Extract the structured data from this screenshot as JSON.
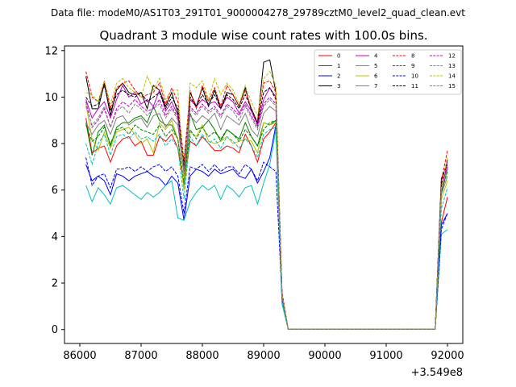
{
  "suptitle": "Data file: modeM0/AS1T03_291T01_9000004278_29789cztM0_level2_quad_clean.evt",
  "chart_data": {
    "type": "line",
    "title": "Quadrant 3 module wise count rates with 100.0s bins.",
    "xlabel": "",
    "ylabel": "",
    "xlim": [
      85750,
      92250
    ],
    "ylim": [
      -0.6,
      12.2
    ],
    "x_offset_label": "+3.549e8",
    "x_ticks": [
      86000,
      87000,
      88000,
      89000,
      90000,
      91000,
      92000
    ],
    "y_ticks": [
      0,
      2,
      4,
      6,
      8,
      10,
      12
    ],
    "grid": false,
    "legend_placement": "upper right, 4 columns",
    "x": [
      86100,
      86200,
      86300,
      86400,
      86500,
      86600,
      86700,
      86800,
      86900,
      87000,
      87100,
      87200,
      87300,
      87400,
      87500,
      87600,
      87700,
      87800,
      87900,
      88000,
      88100,
      88200,
      88300,
      88400,
      88500,
      88600,
      88700,
      88800,
      88900,
      89000,
      89100,
      89200,
      89300,
      89400,
      89500,
      89600,
      89700,
      89800,
      89900,
      90000,
      90100,
      90200,
      90300,
      90400,
      90500,
      90600,
      90700,
      90800,
      90900,
      91000,
      91100,
      91200,
      91300,
      91400,
      91500,
      91600,
      91700,
      91800,
      91900,
      92000
    ],
    "series": [
      {
        "name": "0",
        "color": "#ff0000",
        "dash": "solid",
        "values": [
          9.1,
          7.6,
          7.8,
          7.9,
          7.2,
          7.9,
          8.2,
          8.3,
          7.9,
          8.1,
          7.5,
          7.5,
          8.3,
          8.1,
          8.4,
          7.8,
          6.2,
          8.1,
          7.9,
          8.3,
          8.0,
          7.7,
          7.7,
          7.9,
          7.8,
          7.6,
          8.4,
          7.9,
          7.2,
          8.2,
          8.5,
          8.9,
          1.2,
          0.02,
          0.02,
          0.02,
          0.02,
          0.02,
          0.02,
          0.02,
          0.02,
          0.02,
          0.02,
          0.02,
          0.02,
          0.02,
          0.02,
          0.02,
          0.02,
          0.02,
          0.02,
          0.02,
          0.02,
          0.02,
          0.02,
          0.02,
          0.02,
          0.02,
          4.6,
          5.7
        ]
      },
      {
        "name": "1",
        "color": "#008000",
        "dash": "solid",
        "values": [
          8.9,
          7.5,
          8.5,
          8.8,
          7.9,
          8.7,
          8.9,
          8.9,
          9.1,
          9.2,
          8.9,
          9.6,
          9.0,
          8.8,
          8.8,
          8.2,
          6.1,
          9.3,
          8.6,
          8.7,
          9.0,
          8.6,
          8.1,
          8.6,
          8.4,
          8.2,
          8.9,
          8.3,
          7.9,
          8.9,
          8.8,
          9.0,
          1.3,
          0.02,
          0.02,
          0.02,
          0.02,
          0.02,
          0.02,
          0.02,
          0.02,
          0.02,
          0.02,
          0.02,
          0.02,
          0.02,
          0.02,
          0.02,
          0.02,
          0.02,
          0.02,
          0.02,
          0.02,
          0.02,
          0.02,
          0.02,
          0.02,
          0.02,
          5.9,
          6.9
        ]
      },
      {
        "name": "2",
        "color": "#0000ff",
        "dash": "solid",
        "values": [
          7.1,
          6.4,
          6.6,
          6.4,
          5.8,
          6.7,
          6.6,
          6.4,
          6.6,
          6.7,
          6.8,
          6.6,
          6.5,
          6.2,
          6.6,
          6.3,
          4.7,
          6.6,
          6.9,
          6.8,
          6.6,
          6.9,
          6.7,
          6.8,
          6.9,
          6.6,
          6.5,
          6.9,
          6.3,
          6.8,
          7.4,
          8.8,
          1.4,
          0.02,
          0.02,
          0.02,
          0.02,
          0.02,
          0.02,
          0.02,
          0.02,
          0.02,
          0.02,
          0.02,
          0.02,
          0.02,
          0.02,
          0.02,
          0.02,
          0.02,
          0.02,
          0.02,
          0.02,
          0.02,
          0.02,
          0.02,
          0.02,
          0.02,
          4.5,
          5.0
        ]
      },
      {
        "name": "3",
        "color": "#000000",
        "dash": "solid",
        "values": [
          10.9,
          9.5,
          9.5,
          10.6,
          9.2,
          10.3,
          10.6,
          10.2,
          10.1,
          10.2,
          9.5,
          10.5,
          10.3,
          9.6,
          10.2,
          9.3,
          6.9,
          10.2,
          9.6,
          10.4,
          9.6,
          10.3,
          9.5,
          10.2,
          10.1,
          9.6,
          10.4,
          9.4,
          8.9,
          11.5,
          11.6,
          10.2,
          1.5,
          0.02,
          0.02,
          0.02,
          0.02,
          0.02,
          0.02,
          0.02,
          0.02,
          0.02,
          0.02,
          0.02,
          0.02,
          0.02,
          0.02,
          0.02,
          0.02,
          0.02,
          0.02,
          0.02,
          0.02,
          0.02,
          0.02,
          0.02,
          0.02,
          0.02,
          6.5,
          7.1
        ]
      },
      {
        "name": "4",
        "color": "#c000c0",
        "dash": "solid",
        "values": [
          9.9,
          9.1,
          9.5,
          9.8,
          9.1,
          9.9,
          10.5,
          10.0,
          10.2,
          9.7,
          9.9,
          9.6,
          10.3,
          9.4,
          9.8,
          9.2,
          7.0,
          9.9,
          9.6,
          9.9,
          9.7,
          9.8,
          9.5,
          10.0,
          9.8,
          9.3,
          9.8,
          9.4,
          8.8,
          9.9,
          10.4,
          10.0,
          1.5,
          0.02,
          0.02,
          0.02,
          0.02,
          0.02,
          0.02,
          0.02,
          0.02,
          0.02,
          0.02,
          0.02,
          0.02,
          0.02,
          0.02,
          0.02,
          0.02,
          0.02,
          0.02,
          0.02,
          0.02,
          0.02,
          0.02,
          0.02,
          0.02,
          0.02,
          6.2,
          7.0
        ]
      },
      {
        "name": "5",
        "color": "#00bfbf",
        "dash": "solid",
        "values": [
          6.2,
          5.5,
          6.1,
          5.8,
          5.4,
          6.1,
          6.2,
          6.0,
          5.8,
          5.6,
          5.9,
          5.7,
          5.9,
          6.2,
          6.4,
          4.8,
          4.7,
          5.5,
          5.9,
          6.2,
          6.0,
          6.2,
          5.6,
          6.2,
          6.0,
          5.7,
          6.1,
          6.2,
          5.4,
          6.3,
          7.1,
          8.6,
          1.1,
          0.02,
          0.02,
          0.02,
          0.02,
          0.02,
          0.02,
          0.02,
          0.02,
          0.02,
          0.02,
          0.02,
          0.02,
          0.02,
          0.02,
          0.02,
          0.02,
          0.02,
          0.02,
          0.02,
          0.02,
          0.02,
          0.02,
          0.02,
          0.02,
          0.02,
          4.1,
          4.3
        ]
      },
      {
        "name": "6",
        "color": "#bfbf00",
        "dash": "solid",
        "values": [
          9.7,
          8.2,
          7.7,
          8.5,
          7.8,
          8.5,
          8.6,
          8.7,
          8.4,
          8.0,
          8.2,
          7.6,
          8.9,
          8.6,
          9.0,
          8.2,
          6.0,
          8.5,
          8.3,
          8.8,
          8.1,
          8.0,
          8.1,
          8.3,
          8.0,
          8.1,
          8.2,
          8.1,
          7.6,
          8.9,
          8.8,
          8.9,
          1.4,
          0.02,
          0.02,
          0.02,
          0.02,
          0.02,
          0.02,
          0.02,
          0.02,
          0.02,
          0.02,
          0.02,
          0.02,
          0.02,
          0.02,
          0.02,
          0.02,
          0.02,
          0.02,
          0.02,
          0.02,
          0.02,
          0.02,
          0.02,
          0.02,
          0.02,
          5.6,
          6.4
        ]
      },
      {
        "name": "7",
        "color": "#808080",
        "dash": "solid",
        "values": [
          8.9,
          8.4,
          8.8,
          9.0,
          8.4,
          9.1,
          9.2,
          8.8,
          9.0,
          9.1,
          8.7,
          9.2,
          9.3,
          8.7,
          9.1,
          8.8,
          6.6,
          9.2,
          8.9,
          9.2,
          9.0,
          9.3,
          8.6,
          9.2,
          9.0,
          8.8,
          9.3,
          8.6,
          8.3,
          9.3,
          9.6,
          9.4,
          1.4,
          0.02,
          0.02,
          0.02,
          0.02,
          0.02,
          0.02,
          0.02,
          0.02,
          0.02,
          0.02,
          0.02,
          0.02,
          0.02,
          0.02,
          0.02,
          0.02,
          0.02,
          0.02,
          0.02,
          0.02,
          0.02,
          0.02,
          0.02,
          0.02,
          0.02,
          5.8,
          6.6
        ]
      },
      {
        "name": "8",
        "color": "#ff0000",
        "dash": "dashed",
        "values": [
          11.1,
          10.0,
          9.8,
          10.7,
          9.5,
          10.4,
          10.6,
          10.7,
          10.3,
          10.0,
          10.1,
          10.2,
          10.6,
          9.7,
          10.4,
          9.8,
          7.2,
          10.3,
          9.5,
          10.5,
          9.8,
          10.4,
          9.6,
          10.5,
          10.1,
          9.6,
          10.3,
          9.5,
          8.9,
          10.6,
          10.7,
          10.2,
          1.6,
          0.02,
          0.02,
          0.02,
          0.02,
          0.02,
          0.02,
          0.02,
          0.02,
          0.02,
          0.02,
          0.02,
          0.02,
          0.02,
          0.02,
          0.02,
          0.02,
          0.02,
          0.02,
          0.02,
          0.02,
          0.02,
          0.02,
          0.02,
          0.02,
          0.02,
          6.4,
          7.7
        ]
      },
      {
        "name": "9",
        "color": "#008000",
        "dash": "dashed",
        "values": [
          8.8,
          8.1,
          8.3,
          8.7,
          8.0,
          8.6,
          8.7,
          8.4,
          8.8,
          8.6,
          8.5,
          8.4,
          8.8,
          8.3,
          8.6,
          8.2,
          6.3,
          8.6,
          8.2,
          8.7,
          8.3,
          8.5,
          8.2,
          8.6,
          8.4,
          8.1,
          8.6,
          8.3,
          7.9,
          8.6,
          8.9,
          9.0,
          1.3,
          0.02,
          0.02,
          0.02,
          0.02,
          0.02,
          0.02,
          0.02,
          0.02,
          0.02,
          0.02,
          0.02,
          0.02,
          0.02,
          0.02,
          0.02,
          0.02,
          0.02,
          0.02,
          0.02,
          0.02,
          0.02,
          0.02,
          0.02,
          0.02,
          0.02,
          5.9,
          6.8
        ]
      },
      {
        "name": "10",
        "color": "#0000ff",
        "dash": "dashed",
        "values": [
          7.4,
          6.2,
          6.6,
          6.7,
          6.1,
          6.9,
          6.9,
          7.0,
          6.8,
          7.0,
          6.8,
          7.0,
          7.1,
          6.8,
          7.0,
          6.6,
          5.0,
          7.0,
          6.9,
          7.1,
          6.8,
          7.1,
          6.8,
          7.0,
          7.0,
          6.7,
          7.1,
          6.9,
          6.4,
          7.2,
          7.0,
          6.8,
          1.3,
          0.02,
          0.02,
          0.02,
          0.02,
          0.02,
          0.02,
          0.02,
          0.02,
          0.02,
          0.02,
          0.02,
          0.02,
          0.02,
          0.02,
          0.02,
          0.02,
          0.02,
          0.02,
          0.02,
          0.02,
          0.02,
          0.02,
          0.02,
          0.02,
          0.02,
          4.3,
          5.0
        ]
      },
      {
        "name": "11",
        "color": "#000000",
        "dash": "dashed",
        "values": [
          10.0,
          9.6,
          9.7,
          10.5,
          9.4,
          10.1,
          10.3,
          10.1,
          10.0,
          10.2,
          9.8,
          10.0,
          10.2,
          9.5,
          10.0,
          9.5,
          7.0,
          10.0,
          9.6,
          10.1,
          9.7,
          10.1,
          9.5,
          10.1,
          9.9,
          9.5,
          10.1,
          9.5,
          8.9,
          10.2,
          10.4,
          9.9,
          1.5,
          0.02,
          0.02,
          0.02,
          0.02,
          0.02,
          0.02,
          0.02,
          0.02,
          0.02,
          0.02,
          0.02,
          0.02,
          0.02,
          0.02,
          0.02,
          0.02,
          0.02,
          0.02,
          0.02,
          0.02,
          0.02,
          0.02,
          0.02,
          0.02,
          0.02,
          6.3,
          7.3
        ]
      },
      {
        "name": "12",
        "color": "#c000c0",
        "dash": "dashed",
        "values": [
          9.8,
          8.7,
          9.0,
          9.5,
          8.7,
          9.5,
          9.8,
          9.6,
          9.9,
          9.6,
          9.4,
          9.5,
          9.9,
          9.2,
          9.6,
          9.1,
          6.8,
          9.6,
          9.3,
          9.7,
          9.4,
          9.6,
          9.2,
          9.7,
          9.5,
          9.2,
          9.7,
          9.2,
          8.7,
          9.7,
          10.0,
          9.7,
          1.5,
          0.02,
          0.02,
          0.02,
          0.02,
          0.02,
          0.02,
          0.02,
          0.02,
          0.02,
          0.02,
          0.02,
          0.02,
          0.02,
          0.02,
          0.02,
          0.02,
          0.02,
          0.02,
          0.02,
          0.02,
          0.02,
          0.02,
          0.02,
          0.02,
          0.02,
          6.0,
          7.2
        ]
      },
      {
        "name": "13",
        "color": "#00bfbf",
        "dash": "dashed",
        "values": [
          8.0,
          7.1,
          8.0,
          8.4,
          7.5,
          8.3,
          8.4,
          8.2,
          8.5,
          8.2,
          8.3,
          8.1,
          8.4,
          7.9,
          8.2,
          7.8,
          5.6,
          8.3,
          7.9,
          8.4,
          8.0,
          8.2,
          7.8,
          8.3,
          8.1,
          7.8,
          8.2,
          7.9,
          7.4,
          8.4,
          8.6,
          8.7,
          1.2,
          0.02,
          0.02,
          0.02,
          0.02,
          0.02,
          0.02,
          0.02,
          0.02,
          0.02,
          0.02,
          0.02,
          0.02,
          0.02,
          0.02,
          0.02,
          0.02,
          0.02,
          0.02,
          0.02,
          0.02,
          0.02,
          0.02,
          0.02,
          0.02,
          0.02,
          5.2,
          6.1
        ]
      },
      {
        "name": "14",
        "color": "#bfbf00",
        "dash": "dashed",
        "values": [
          10.2,
          10.1,
          9.8,
          10.7,
          9.7,
          10.6,
          10.8,
          10.4,
          10.2,
          10.0,
          10.9,
          10.3,
          10.8,
          9.9,
          10.3,
          10.3,
          6.5,
          10.6,
          10.4,
          10.7,
          9.9,
          10.8,
          10.1,
          10.6,
          10.3,
          9.7,
          10.5,
          9.8,
          9.2,
          10.8,
          11.1,
          10.5,
          1.5,
          0.02,
          0.02,
          0.02,
          0.02,
          0.02,
          0.02,
          0.02,
          0.02,
          0.02,
          0.02,
          0.02,
          0.02,
          0.02,
          0.02,
          0.02,
          0.02,
          0.02,
          0.02,
          0.02,
          0.02,
          0.02,
          0.02,
          0.02,
          0.02,
          0.02,
          6.1,
          7.4
        ]
      },
      {
        "name": "15",
        "color": "#808080",
        "dash": "dashed",
        "values": [
          9.6,
          8.8,
          9.1,
          9.6,
          8.7,
          9.4,
          9.6,
          9.3,
          9.7,
          9.5,
          9.2,
          9.5,
          9.7,
          9.1,
          9.5,
          9.0,
          6.7,
          9.5,
          9.2,
          9.6,
          9.3,
          9.5,
          9.1,
          9.6,
          9.4,
          9.0,
          9.6,
          9.1,
          8.6,
          9.6,
          9.9,
          9.6,
          1.4,
          0.02,
          0.02,
          0.02,
          0.02,
          0.02,
          0.02,
          0.02,
          0.02,
          0.02,
          0.02,
          0.02,
          0.02,
          0.02,
          0.02,
          0.02,
          0.02,
          0.02,
          0.02,
          0.02,
          0.02,
          0.02,
          0.02,
          0.02,
          0.02,
          0.02,
          6.0,
          6.9
        ]
      }
    ]
  }
}
